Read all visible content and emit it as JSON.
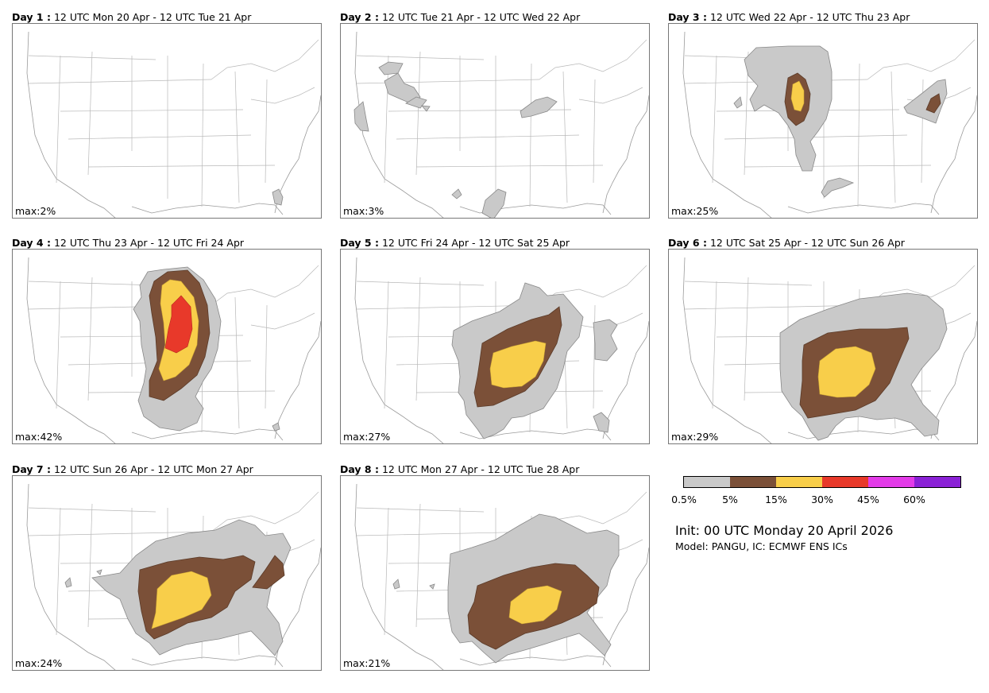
{
  "panels": [
    {
      "day": "Day 1 :",
      "period": "12 UTC Mon 20 Apr - 12 UTC Tue 21 Apr",
      "max": "max:2%"
    },
    {
      "day": "Day 2 :",
      "period": "12 UTC Tue 21 Apr - 12 UTC Wed 22 Apr",
      "max": "max:3%"
    },
    {
      "day": "Day 3 :",
      "period": "12 UTC Wed 22 Apr - 12 UTC Thu 23 Apr",
      "max": "max:25%"
    },
    {
      "day": "Day 4 :",
      "period": "12 UTC Thu 23 Apr - 12 UTC Fri 24 Apr",
      "max": "max:42%"
    },
    {
      "day": "Day 5 :",
      "period": "12 UTC Fri 24 Apr - 12 UTC Sat 25 Apr",
      "max": "max:27%"
    },
    {
      "day": "Day 6 :",
      "period": "12 UTC Sat 25 Apr - 12 UTC Sun 26 Apr",
      "max": "max:29%"
    },
    {
      "day": "Day 7 :",
      "period": "12 UTC Sun 26 Apr - 12 UTC Mon 27 Apr",
      "max": "max:24%"
    },
    {
      "day": "Day 8 :",
      "period": "12 UTC Mon 27 Apr - 12 UTC Tue 28 Apr",
      "max": "max:21%"
    }
  ],
  "legend": {
    "colors": [
      "#c9c9c9",
      "#7b5038",
      "#f8ce4a",
      "#e8392a",
      "#e33be8",
      "#8a21d6"
    ],
    "labels": [
      "0.5%",
      "5%",
      "15%",
      "30%",
      "45%",
      "60%"
    ]
  },
  "init": "Init: 00 UTC Monday 20 April 2026",
  "model": "Model: PANGU, IC: ECMWF ENS ICs"
}
